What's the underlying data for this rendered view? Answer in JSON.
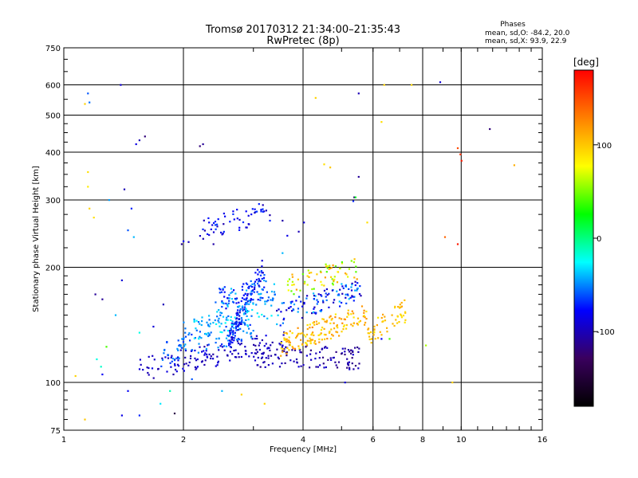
{
  "chart_data": {
    "type": "scatter",
    "title": "Tromsø 20170312 21:34:00–21:35:43",
    "subtitle": "RwPretec (8p)",
    "xlabel": "Frequency [MHz]",
    "ylabel": "Stationary phase Virtual Height [km]",
    "x_scale": "log",
    "y_scale": "log",
    "xlim": [
      1,
      16
    ],
    "ylim": [
      75,
      750
    ],
    "x_ticks": [
      1,
      2,
      4,
      6,
      8,
      10,
      16
    ],
    "y_ticks": [
      75,
      100,
      200,
      300,
      400,
      500,
      600,
      750
    ],
    "grid": true,
    "legend": {
      "title": "Phases",
      "lines": [
        "mean, sd,O: -84.2, 20.0",
        "mean, sd,X:  93.9, 22.9"
      ],
      "position": "top-right"
    },
    "colorbar": {
      "label": "[deg]",
      "range": [
        -180,
        180
      ],
      "ticks": [
        100,
        0,
        -100
      ],
      "colors": [
        "#000000",
        "#3a005e",
        "#0000ff",
        "#00ffff",
        "#00ff00",
        "#ffff00",
        "#ff8000",
        "#ff0000"
      ]
    },
    "points": [
      [
        1.07,
        104,
        95
      ],
      [
        1.13,
        80,
        100
      ],
      [
        1.15,
        355,
        90
      ],
      [
        1.15,
        325,
        85
      ],
      [
        1.16,
        285,
        95
      ],
      [
        1.19,
        270,
        90
      ],
      [
        1.25,
        105,
        -80
      ],
      [
        1.15,
        570,
        -60
      ],
      [
        1.16,
        540,
        -55
      ],
      [
        1.13,
        535,
        95
      ],
      [
        1.21,
        115,
        -20
      ],
      [
        1.24,
        110,
        -15
      ],
      [
        1.3,
        300,
        -45
      ],
      [
        1.39,
        600,
        -90
      ],
      [
        1.42,
        320,
        -100
      ],
      [
        1.48,
        285,
        -70
      ],
      [
        1.52,
        420,
        -85
      ],
      [
        1.55,
        430,
        -100
      ],
      [
        1.6,
        440,
        -120
      ],
      [
        1.45,
        250,
        -60
      ],
      [
        1.5,
        240,
        -40
      ],
      [
        1.4,
        185,
        -90
      ],
      [
        1.25,
        165,
        -110
      ],
      [
        1.35,
        150,
        -40
      ],
      [
        1.55,
        135,
        -20
      ],
      [
        1.2,
        170,
        -110
      ],
      [
        1.45,
        95,
        -80
      ],
      [
        1.55,
        82,
        -70
      ],
      [
        1.75,
        88,
        -30
      ],
      [
        1.85,
        95,
        -10
      ],
      [
        1.28,
        124,
        40
      ],
      [
        1.9,
        83,
        -140
      ],
      [
        2.2,
        415,
        -120
      ],
      [
        2.24,
        420,
        -110
      ],
      [
        1.4,
        82,
        -85
      ],
      [
        1.68,
        140,
        -90
      ],
      [
        1.78,
        160,
        -100
      ],
      [
        1.98,
        230,
        -110
      ],
      [
        2.0,
        234,
        -80
      ],
      [
        2.06,
        233,
        -100
      ],
      [
        2.32,
        243,
        -90
      ],
      [
        2.38,
        230,
        -105
      ],
      [
        2.32,
        262,
        -80
      ],
      [
        3.55,
        265,
        -105
      ],
      [
        3.65,
        242,
        -85
      ],
      [
        3.3,
        265,
        -70
      ],
      [
        3.55,
        218,
        -40
      ],
      [
        3.9,
        248,
        -100
      ],
      [
        4.02,
        262,
        -90
      ],
      [
        5.38,
        305,
        -120
      ],
      [
        5.35,
        298,
        -70
      ],
      [
        5.42,
        305,
        20
      ],
      [
        5.52,
        345,
        -110
      ],
      [
        5.52,
        570,
        -100
      ],
      [
        4.3,
        555,
        95
      ],
      [
        4.52,
        372,
        90
      ],
      [
        4.68,
        365,
        100
      ],
      [
        5.8,
        262,
        90
      ],
      [
        6.3,
        480,
        90
      ],
      [
        6.4,
        600,
        95
      ],
      [
        7.5,
        600,
        95
      ],
      [
        8.85,
        610,
        -90
      ],
      [
        9.1,
        240,
        140
      ],
      [
        9.8,
        410,
        150
      ],
      [
        9.95,
        395,
        160
      ],
      [
        10.02,
        380,
        170
      ],
      [
        9.8,
        230,
        170
      ],
      [
        11.8,
        460,
        -120
      ],
      [
        13.6,
        370,
        110
      ],
      [
        9.5,
        100,
        95
      ],
      [
        8.15,
        125,
        60
      ],
      [
        6.6,
        130,
        40
      ],
      [
        2.1,
        102,
        -60
      ],
      [
        2.5,
        95,
        -40
      ],
      [
        2.8,
        93,
        95
      ],
      [
        3.2,
        88,
        95
      ],
      [
        3.9,
        110,
        -90
      ],
      [
        5.1,
        100,
        -90
      ],
      [
        6.3,
        130,
        -80
      ]
    ],
    "clusters": [
      {
        "x_range": [
          1.55,
          3.6
        ],
        "h_start": 108,
        "h_end": 128,
        "n": 140,
        "phase": -95,
        "spread": 12
      },
      {
        "x_range": [
          1.75,
          3.0
        ],
        "h_start": 118,
        "h_end": 140,
        "n": 90,
        "phase": -55,
        "spread": 14
      },
      {
        "x_range": [
          2.6,
          3.2
        ],
        "h_start": 128,
        "h_end": 200,
        "n": 120,
        "phase": -75,
        "spread": 20
      },
      {
        "x_range": [
          2.4,
          3.4
        ],
        "h_start": 165,
        "h_end": 175,
        "n": 90,
        "phase": -60,
        "spread": 25
      },
      {
        "x_range": [
          2.2,
          3.3
        ],
        "h_start": 250,
        "h_end": 280,
        "n": 55,
        "phase": -85,
        "spread": 20
      },
      {
        "x_range": [
          3.0,
          5.6
        ],
        "h_start": 118,
        "h_end": 116,
        "n": 120,
        "phase": -105,
        "spread": 15
      },
      {
        "x_range": [
          3.4,
          5.6
        ],
        "h_start": 150,
        "h_end": 175,
        "n": 110,
        "phase": -70,
        "spread": 35
      },
      {
        "x_range": [
          3.5,
          5.8
        ],
        "h_start": 125,
        "h_end": 150,
        "n": 150,
        "phase": 105,
        "spread": 22
      },
      {
        "x_range": [
          3.6,
          5.5
        ],
        "h_start": 180,
        "h_end": 200,
        "n": 70,
        "phase": 80,
        "spread": 40
      },
      {
        "x_range": [
          5.8,
          7.3
        ],
        "h_start": 132,
        "h_end": 155,
        "n": 55,
        "phase": 100,
        "spread": 15
      },
      {
        "x_range": [
          2.0,
          3.5
        ],
        "h_start": 135,
        "h_end": 160,
        "n": 90,
        "phase": -40,
        "spread": 18
      }
    ]
  }
}
